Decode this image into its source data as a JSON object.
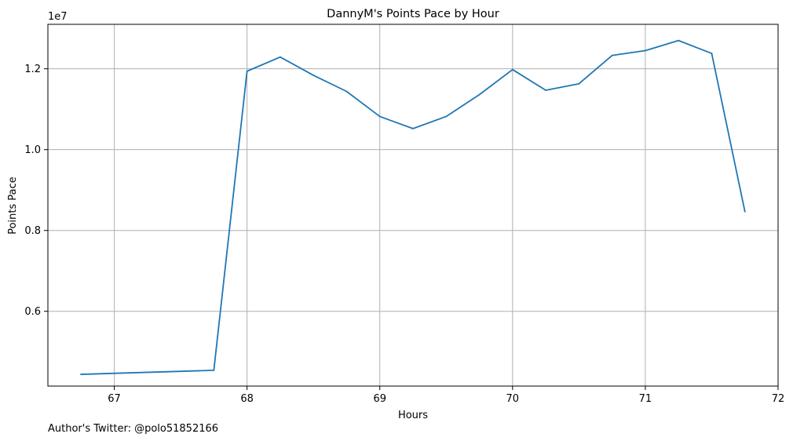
{
  "chart_data": {
    "type": "line",
    "title": "DannyM's Points Pace by Hour",
    "xlabel": "Hours",
    "ylabel": "Points Pace",
    "y_offset_label": "1e7",
    "footnote": "Author's Twitter: @polo51852166",
    "xlim": [
      66.5,
      72.0
    ],
    "ylim": [
      4150000,
      13100000
    ],
    "x_ticks": [
      67,
      68,
      69,
      70,
      71,
      72
    ],
    "x_tick_labels": [
      "67",
      "68",
      "69",
      "70",
      "71",
      "72"
    ],
    "y_ticks": [
      6000000,
      8000000,
      10000000,
      12000000
    ],
    "y_tick_labels": [
      "0.6",
      "0.8",
      "1.0",
      "1.2"
    ],
    "grid": true,
    "series": [
      {
        "color": "#1f77b4",
        "x": [
          66.75,
          67.75,
          68.0,
          68.25,
          68.5,
          68.75,
          69.0,
          69.25,
          69.5,
          69.75,
          70.0,
          70.25,
          70.5,
          70.75,
          71.0,
          71.25,
          71.5,
          71.75
        ],
        "y": [
          4440000,
          4540000,
          11940000,
          12290000,
          11840000,
          11440000,
          10820000,
          10520000,
          10820000,
          11360000,
          11980000,
          11470000,
          11630000,
          12330000,
          12450000,
          12700000,
          12380000,
          8470000
        ]
      }
    ]
  }
}
